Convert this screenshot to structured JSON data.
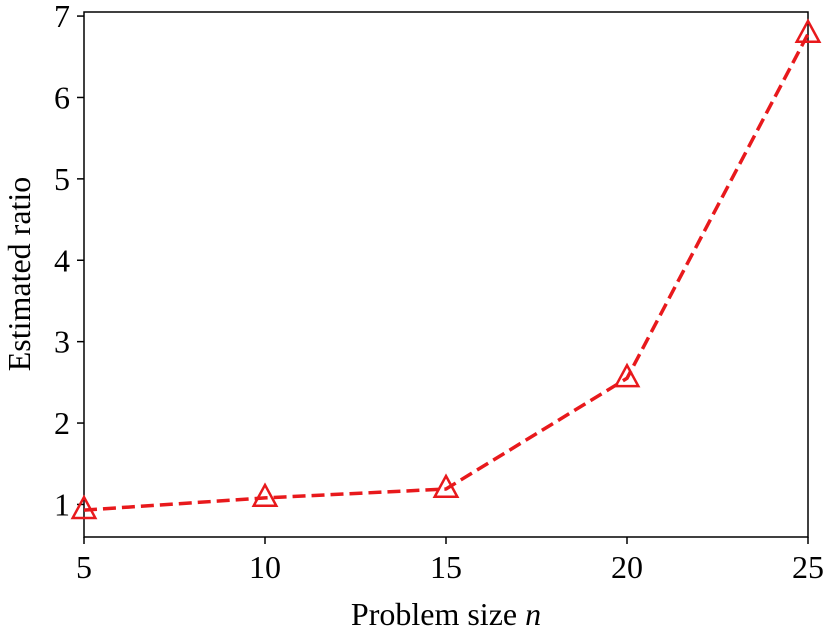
{
  "chart_data": {
    "type": "line",
    "title": "",
    "xlabel": "Problem size",
    "xlabel_var": "n",
    "ylabel": "Estimated ratio",
    "x": [
      5,
      10,
      15,
      20,
      25
    ],
    "series": [
      {
        "values": [
          0.93,
          1.08,
          1.19,
          2.55,
          6.78
        ],
        "color": "#e8191c",
        "line_style": "dashed",
        "marker": "triangle-open"
      }
    ],
    "xlim": [
      5,
      25
    ],
    "ylim": [
      0.6,
      7.05
    ],
    "xticks": [
      5,
      10,
      15,
      20,
      25
    ],
    "yticks": [
      1,
      2,
      3,
      4,
      5,
      6,
      7
    ],
    "grid": false,
    "legend": "none"
  }
}
